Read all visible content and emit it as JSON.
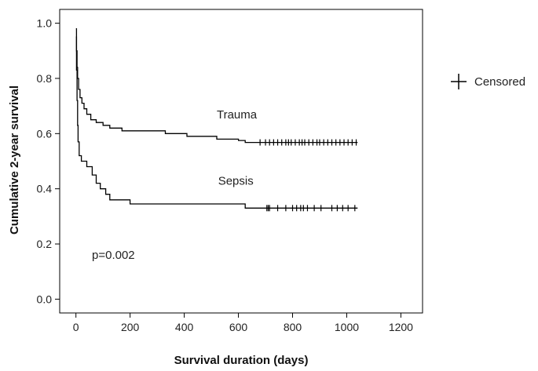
{
  "chart_data": {
    "type": "line",
    "subtype": "kaplan-meier",
    "title": "",
    "xlabel": "Survival duration (days)",
    "ylabel": "Cumulative 2-year survival",
    "xlim": [
      -60,
      1280
    ],
    "ylim": [
      -0.05,
      1.05
    ],
    "xticks": [
      0,
      200,
      400,
      600,
      800,
      1000,
      1200
    ],
    "xtick_labels": [
      "0",
      "200",
      "400",
      "600",
      "800",
      "1000",
      "1200"
    ],
    "yticks": [
      0.0,
      0.2,
      0.4,
      0.6,
      0.8,
      1.0
    ],
    "ytick_labels": [
      "0.0",
      "0.2",
      "0.4",
      "0.6",
      "0.8",
      "1.0"
    ],
    "legend": {
      "label": "Censored",
      "placement": "right"
    },
    "annotation": "p=0.002",
    "series": [
      {
        "name": "Trauma",
        "label": "Trauma",
        "label_pos": [
          520,
          0.655
        ],
        "color": "#000000",
        "steps": [
          [
            0,
            0.98
          ],
          [
            2,
            0.9
          ],
          [
            4,
            0.84
          ],
          [
            6,
            0.8
          ],
          [
            10,
            0.76
          ],
          [
            15,
            0.73
          ],
          [
            22,
            0.71
          ],
          [
            30,
            0.69
          ],
          [
            40,
            0.67
          ],
          [
            55,
            0.65
          ],
          [
            75,
            0.64
          ],
          [
            100,
            0.63
          ],
          [
            125,
            0.62
          ],
          [
            170,
            0.61
          ],
          [
            330,
            0.6
          ],
          [
            410,
            0.59
          ],
          [
            520,
            0.58
          ],
          [
            540,
            0.58
          ],
          [
            550,
            0.58
          ],
          [
            555,
            0.58
          ],
          [
            560,
            0.58
          ],
          [
            565,
            0.58
          ],
          [
            570,
            0.58
          ],
          [
            575,
            0.58
          ],
          [
            580,
            0.58
          ],
          [
            600,
            0.575
          ],
          [
            625,
            0.568
          ],
          [
            1040,
            0.568
          ]
        ],
        "censored": [
          680,
          700,
          715,
          730,
          745,
          760,
          775,
          785,
          795,
          810,
          825,
          835,
          845,
          860,
          875,
          890,
          900,
          915,
          930,
          945,
          960,
          975,
          990,
          1005,
          1020,
          1035
        ],
        "censor_level": 0.568
      },
      {
        "name": "Sepsis",
        "label": "Sepsis",
        "label_pos": [
          525,
          0.415
        ],
        "color": "#000000",
        "steps": [
          [
            0,
            0.95
          ],
          [
            2,
            0.83
          ],
          [
            4,
            0.72
          ],
          [
            6,
            0.63
          ],
          [
            8,
            0.57
          ],
          [
            12,
            0.52
          ],
          [
            20,
            0.5
          ],
          [
            40,
            0.48
          ],
          [
            60,
            0.45
          ],
          [
            75,
            0.42
          ],
          [
            90,
            0.4
          ],
          [
            110,
            0.38
          ],
          [
            125,
            0.36
          ],
          [
            200,
            0.345
          ],
          [
            625,
            0.33
          ],
          [
            1040,
            0.33
          ]
        ],
        "censored": [
          705,
          710,
          715,
          745,
          775,
          800,
          815,
          830,
          840,
          855,
          880,
          905,
          945,
          965,
          985,
          1005,
          1030
        ],
        "censor_level": 0.33
      }
    ]
  }
}
